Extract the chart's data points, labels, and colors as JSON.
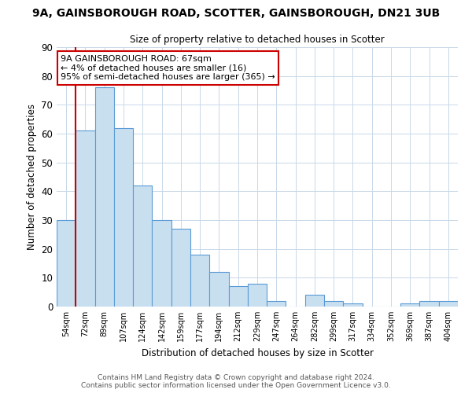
{
  "title": "9A, GAINSBOROUGH ROAD, SCOTTER, GAINSBOROUGH, DN21 3UB",
  "subtitle": "Size of property relative to detached houses in Scotter",
  "xlabel": "Distribution of detached houses by size in Scotter",
  "ylabel": "Number of detached properties",
  "bar_labels": [
    "54sqm",
    "72sqm",
    "89sqm",
    "107sqm",
    "124sqm",
    "142sqm",
    "159sqm",
    "177sqm",
    "194sqm",
    "212sqm",
    "229sqm",
    "247sqm",
    "264sqm",
    "282sqm",
    "299sqm",
    "317sqm",
    "334sqm",
    "352sqm",
    "369sqm",
    "387sqm",
    "404sqm"
  ],
  "bar_values": [
    30,
    61,
    76,
    62,
    42,
    30,
    27,
    18,
    12,
    7,
    8,
    2,
    0,
    4,
    2,
    1,
    0,
    0,
    1,
    2,
    2
  ],
  "bar_color": "#c8dff0",
  "bar_edge_color": "#5b9bd5",
  "vline_color": "#cc0000",
  "vline_pos": 0,
  "ylim": [
    0,
    90
  ],
  "yticks": [
    0,
    10,
    20,
    30,
    40,
    50,
    60,
    70,
    80,
    90
  ],
  "annotation_title": "9A GAINSBOROUGH ROAD: 67sqm",
  "annotation_line1": "← 4% of detached houses are smaller (16)",
  "annotation_line2": "95% of semi-detached houses are larger (365) →",
  "annotation_box_color": "#ffffff",
  "annotation_box_edge_color": "#cc0000",
  "footer_line1": "Contains HM Land Registry data © Crown copyright and database right 2024.",
  "footer_line2": "Contains public sector information licensed under the Open Government Licence v3.0.",
  "background_color": "#ffffff",
  "grid_color": "#c8d8e8"
}
